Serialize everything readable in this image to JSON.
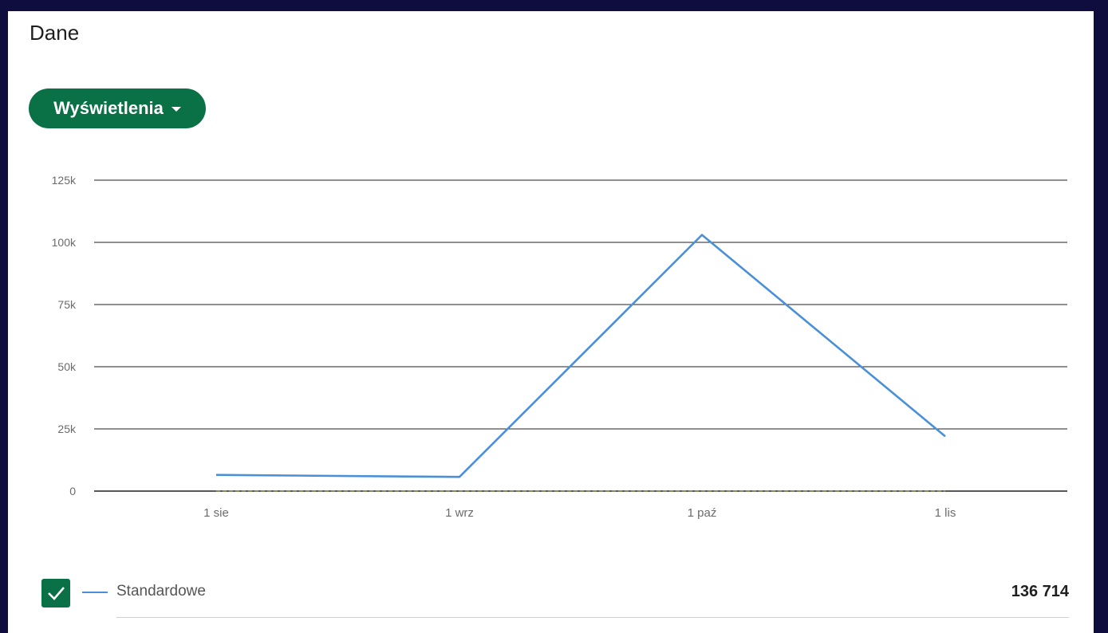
{
  "card": {
    "title": "Dane"
  },
  "metric_selector": {
    "label": "Wyświetlenia"
  },
  "legend": [
    {
      "label": "Standardowe",
      "total": "136 714",
      "checked": true,
      "color": "#4a90d9"
    }
  ],
  "colors": {
    "page_background": "#0f0d3e",
    "card": "#ffffff",
    "accent_green": "#0a7045",
    "series_line": "#4a90d9",
    "baseline_dashed": "#8b8b5a",
    "gridline": "#222222"
  },
  "chart_data": {
    "type": "line",
    "title": "",
    "xlabel": "",
    "ylabel": "",
    "categories": [
      "1 sie",
      "1 wrz",
      "1 paź",
      "1 lis"
    ],
    "ylim": [
      0,
      125000
    ],
    "yticks": [
      {
        "value": 125000,
        "label": "125k"
      },
      {
        "value": 100000,
        "label": "100k"
      },
      {
        "value": 75000,
        "label": "75k"
      },
      {
        "value": 50000,
        "label": "50k"
      },
      {
        "value": 25000,
        "label": "25k"
      },
      {
        "value": 0,
        "label": "0"
      }
    ],
    "series": [
      {
        "name": "Standardowe",
        "color": "#4a90d9",
        "values": [
          6500,
          5700,
          103000,
          22000
        ]
      },
      {
        "values": [
          0,
          0,
          0,
          0
        ],
        "dashed": true,
        "color": "#8b8b5a"
      }
    ],
    "grid": true,
    "legend": "bottom"
  }
}
